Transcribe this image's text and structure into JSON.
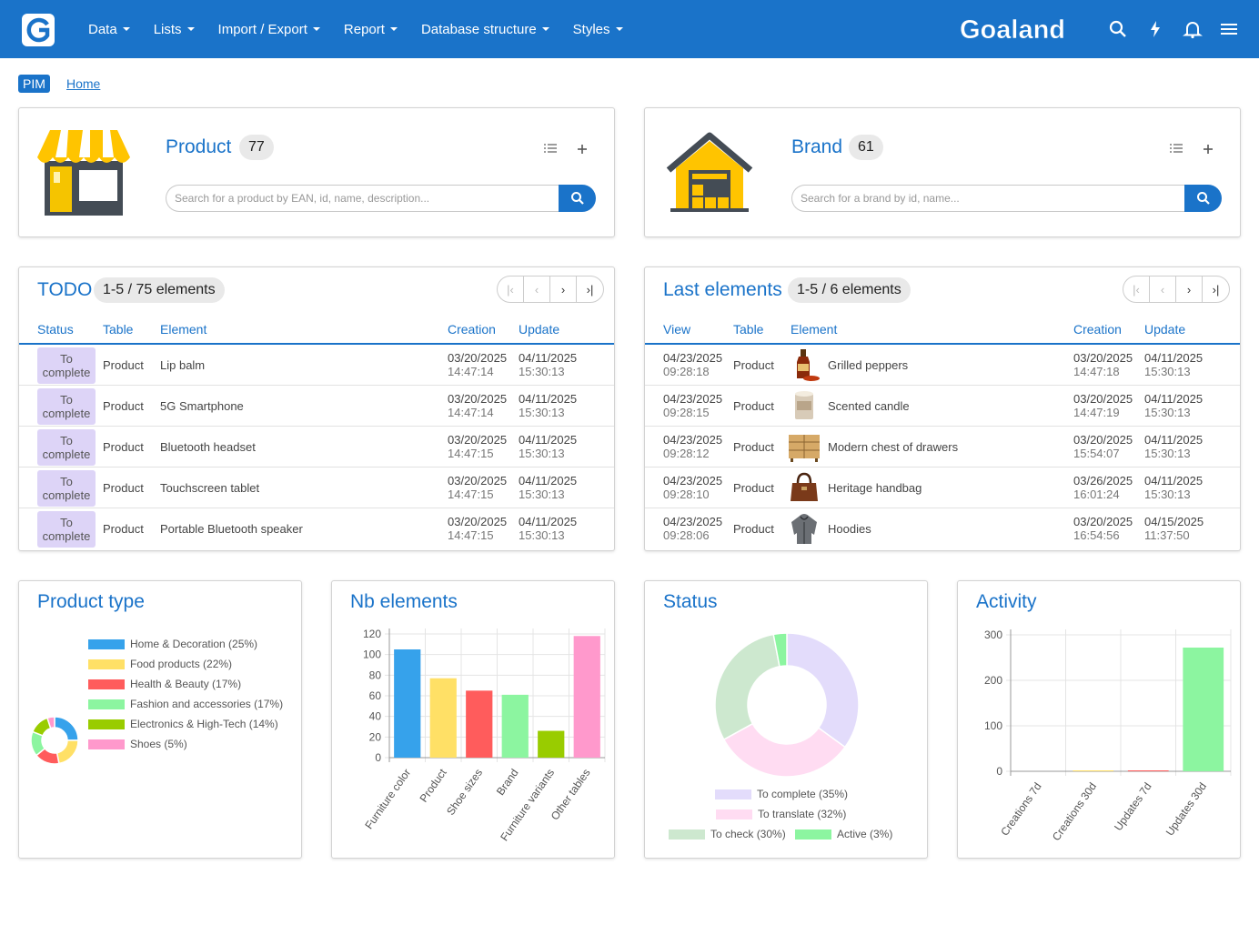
{
  "nav": {
    "items": [
      "Data",
      "Lists",
      "Import / Export",
      "Report",
      "Database structure",
      "Styles"
    ],
    "brand": "Goaland"
  },
  "breadcrumb": {
    "badge": "PIM",
    "home": "Home"
  },
  "product_card": {
    "title": "Product",
    "count": "77",
    "placeholder": "Search for a product by EAN, id, name, description..."
  },
  "brand_card": {
    "title": "Brand",
    "count": "61",
    "placeholder": "Search for a brand by id, name..."
  },
  "todo": {
    "title": "TODO",
    "badge": "1-5 / 75 elements",
    "pager": [
      "|‹",
      "‹",
      "›",
      "›|"
    ],
    "headers": [
      "Status",
      "Table",
      "Element",
      "Creation",
      "Update"
    ],
    "rows": [
      {
        "status_1": "To",
        "status_2": "complete",
        "table": "Product",
        "element": "Lip balm",
        "c_date": "03/20/2025",
        "c_time": "14:47:14",
        "u_date": "04/11/2025",
        "u_time": "15:30:13"
      },
      {
        "status_1": "To",
        "status_2": "complete",
        "table": "Product",
        "element": "5G Smartphone",
        "c_date": "03/20/2025",
        "c_time": "14:47:14",
        "u_date": "04/11/2025",
        "u_time": "15:30:13"
      },
      {
        "status_1": "To",
        "status_2": "complete",
        "table": "Product",
        "element": "Bluetooth headset",
        "c_date": "03/20/2025",
        "c_time": "14:47:15",
        "u_date": "04/11/2025",
        "u_time": "15:30:13"
      },
      {
        "status_1": "To",
        "status_2": "complete",
        "table": "Product",
        "element": "Touchscreen tablet",
        "c_date": "03/20/2025",
        "c_time": "14:47:15",
        "u_date": "04/11/2025",
        "u_time": "15:30:13"
      },
      {
        "status_1": "To",
        "status_2": "complete",
        "table": "Product",
        "element": "Portable Bluetooth speaker",
        "c_date": "03/20/2025",
        "c_time": "14:47:15",
        "u_date": "04/11/2025",
        "u_time": "15:30:13"
      }
    ]
  },
  "last": {
    "title": "Last elements",
    "badge": "1-5 / 6 elements",
    "pager": [
      "|‹",
      "‹",
      "›",
      "›|"
    ],
    "headers": [
      "View",
      "Table",
      "Element",
      "Creation",
      "Update"
    ],
    "rows": [
      {
        "v_date": "04/23/2025",
        "v_time": "09:28:18",
        "table": "Product",
        "thumb": "bottle-icon",
        "element": "Grilled peppers",
        "c_date": "03/20/2025",
        "c_time": "14:47:18",
        "u_date": "04/11/2025",
        "u_time": "15:30:13"
      },
      {
        "v_date": "04/23/2025",
        "v_time": "09:28:15",
        "table": "Product",
        "thumb": "candle-icon",
        "element": "Scented candle",
        "c_date": "03/20/2025",
        "c_time": "14:47:19",
        "u_date": "04/11/2025",
        "u_time": "15:30:13"
      },
      {
        "v_date": "04/23/2025",
        "v_time": "09:28:12",
        "table": "Product",
        "thumb": "drawers-icon",
        "element": "Modern chest of drawers",
        "c_date": "03/20/2025",
        "c_time": "15:54:07",
        "u_date": "04/11/2025",
        "u_time": "15:30:13"
      },
      {
        "v_date": "04/23/2025",
        "v_time": "09:28:10",
        "table": "Product",
        "thumb": "handbag-icon",
        "element": "Heritage handbag",
        "c_date": "03/26/2025",
        "c_time": "16:01:24",
        "u_date": "04/11/2025",
        "u_time": "15:30:13"
      },
      {
        "v_date": "04/23/2025",
        "v_time": "09:28:06",
        "table": "Product",
        "thumb": "hoodie-icon",
        "element": "Hoodies",
        "c_date": "03/20/2025",
        "c_time": "16:54:56",
        "u_date": "04/15/2025",
        "u_time": "11:37:50"
      }
    ]
  },
  "chart_titles": {
    "product_type": "Product type",
    "nb_elements": "Nb elements",
    "status": "Status",
    "activity": "Activity"
  },
  "chart_data": [
    {
      "type": "pie",
      "title": "Product type",
      "donut": true,
      "legend_position": "top-right",
      "labels": [
        "Home & Decoration (25%)",
        "Food products (22%)",
        "Health & Beauty (17%)",
        "Fashion and accessories (17%)",
        "Electronics & High-Tech (14%)",
        "Shoes (5%)"
      ],
      "values": [
        25,
        22,
        17,
        17,
        14,
        5
      ],
      "colors": [
        "#36a2eb",
        "#ffe066",
        "#ff5c5c",
        "#8cf5a0",
        "#99cc00",
        "#ff99cc"
      ]
    },
    {
      "type": "bar",
      "title": "Nb elements",
      "categories": [
        "Furniture color",
        "Product",
        "Shoe sizes",
        "Brand",
        "Furniture variants",
        "Other tables"
      ],
      "values": [
        105,
        77,
        65,
        61,
        26,
        118
      ],
      "colors": [
        "#36a2eb",
        "#ffe066",
        "#ff5c5c",
        "#8cf5a0",
        "#99cc00",
        "#ff99cc"
      ],
      "ylim": [
        0,
        120
      ],
      "yticks": [
        0,
        20,
        40,
        60,
        80,
        100,
        120
      ],
      "grid": true
    },
    {
      "type": "pie",
      "title": "Status",
      "donut": true,
      "legend_position": "bottom",
      "labels": [
        "To complete (35%)",
        "To translate (32%)",
        "To check (30%)",
        "Active (3%)"
      ],
      "values": [
        35,
        32,
        30,
        3
      ],
      "colors": [
        "#e3dcfb",
        "#ffdcf2",
        "#cde8cf",
        "#8cf5a0"
      ]
    },
    {
      "type": "bar",
      "title": "Activity",
      "categories": [
        "Creations 7d",
        "Creations 30d",
        "Updates 7d",
        "Updates 30d"
      ],
      "values": [
        0,
        2,
        2,
        272
      ],
      "colors": [
        "#36a2eb",
        "#ffe066",
        "#ff5c5c",
        "#8cf5a0"
      ],
      "ylim": [
        0,
        300
      ],
      "yticks": [
        0,
        100,
        200,
        300
      ],
      "grid": true
    }
  ]
}
